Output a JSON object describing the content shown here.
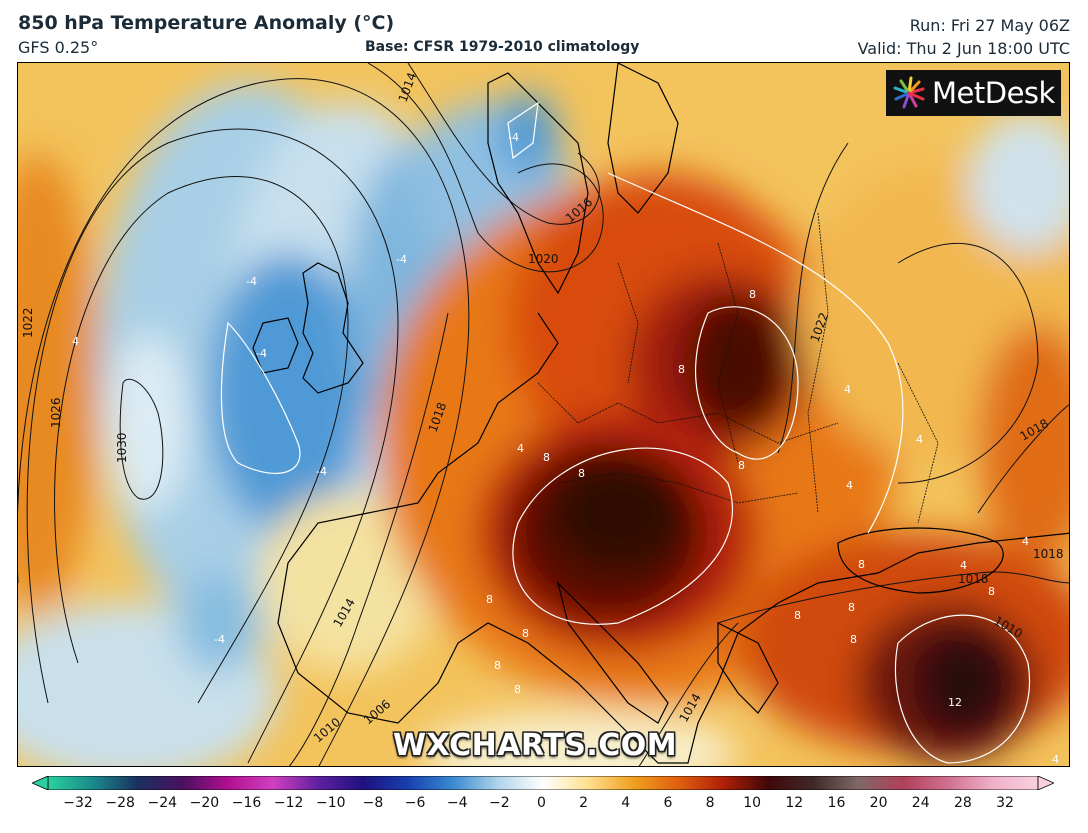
{
  "header": {
    "title": "850 hPa Temperature Anomaly (°C)",
    "model": "GFS 0.25°",
    "base": "Base: CFSR 1979-2010 climatology",
    "run": "Run: Fri 27 May 06Z",
    "valid": "Valid: Thu 2 Jun 18:00 UTC"
  },
  "logo": {
    "text": "MetDesk",
    "icon": "starburst-icon"
  },
  "watermark": "WXCHARTS.COM",
  "isobar_labels": [
    "1014",
    "1016",
    "1020",
    "1022",
    "1026",
    "1030",
    "1018",
    "1014",
    "1010",
    "1006",
    "1014",
    "1018",
    "1022",
    "1018",
    "1018",
    "1010"
  ],
  "anomaly_labels": [
    "-4",
    "-4",
    "-4",
    "-4",
    "-4",
    "-4",
    "4",
    "4",
    "8",
    "8",
    "8",
    "8",
    "8",
    "8",
    "8",
    "8",
    "8",
    "8",
    "8",
    "4",
    "4",
    "4",
    "4",
    "4",
    "8",
    "8",
    "8",
    "12",
    "4"
  ],
  "colorbar": {
    "ticks": [
      "−32",
      "−28",
      "−24",
      "−20",
      "−16",
      "−12",
      "−10",
      "−8",
      "−6",
      "−4",
      "−2",
      "0",
      "2",
      "4",
      "6",
      "8",
      "10",
      "12",
      "16",
      "20",
      "24",
      "28",
      "32"
    ],
    "colors": [
      "#2ad0a0",
      "#1a8a8a",
      "#1a3060",
      "#4a1060",
      "#b01090",
      "#d040c0",
      "#6020a0",
      "#201080",
      "#1840b0",
      "#3a8ad0",
      "#b0d4ea",
      "#ffffff",
      "#ffe090",
      "#f0a020",
      "#e06010",
      "#b02008",
      "#400808",
      "#402828",
      "#806868",
      "#b0405a",
      "#d07090",
      "#f0b0c8",
      "#f8d0e0"
    ]
  }
}
